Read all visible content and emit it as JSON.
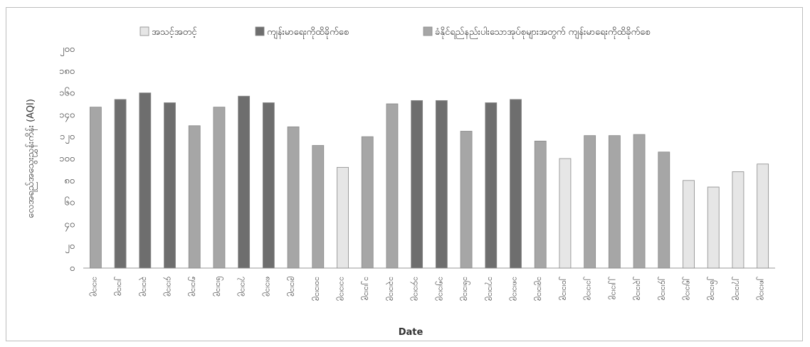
{
  "chart_data": {
    "type": "bar",
    "xlabel": "Date",
    "ylabel": "လေအရည်အသွေးညွှန်းကိန်း (AQI)",
    "ylim": [
      0,
      200
    ],
    "yticks": [
      "၀",
      "၂၀",
      "၄၀",
      "၆၀",
      "၈၀",
      "၁၀၀",
      "၁၂၀",
      "၁၄၀",
      "၁၆၀",
      "၁၈၀",
      "၂၀၀"
    ],
    "legend_position": "top",
    "legend": [
      {
        "key": "moderate",
        "label": "အသင့်အတင့်",
        "color": "#e6e6e6"
      },
      {
        "key": "unhealthy",
        "label": "ကျန်းမာရေးကိုထိခိုက်စေ",
        "color": "#6e6e6e"
      },
      {
        "key": "sensitive",
        "label": "ခံနိုင်ရည်နည်းပါးသောအုပ်စုများအတွက် ကျန်းမာရေးကိုထိခိုက်စေ",
        "color": "#a6a6a6"
      }
    ],
    "categories": [
      "၁၊၁၊၁၉",
      "၂၊၁၊၁၉",
      "၃၊၁၊၁၉",
      "၄၊၁၊၁၉",
      "၅၊၁၊၁၉",
      "၆၊၁၊၁၉",
      "၇၊၁၊၁၉",
      "၈၊၁၊၁၉",
      "၉၊၁၊၁၉",
      "၁၀၊၁၊၁၉",
      "၁၁၊၁၊၁၉",
      "၁၂၊၁၊၁၉",
      "၁၃၊၁၊၁၉",
      "၁၄၊၁၊၁၉",
      "၁၅၊၁၊၁၉",
      "၁၆၊၁၊၁၉",
      "၁၇၊၁၊၁၉",
      "၁၈၊၁၊၁၉",
      "၁၉၊၁၊၁၉",
      "၂၀၊၁၊၁၉",
      "၂၁၊၁၊၁၉",
      "၂၂၊၁၊၁၉",
      "၂၃၊၁၊၁၉",
      "၂၄၊၁၊၁၉",
      "၂၅၊၁၊၁၉",
      "၂၆၊၁၊၁၉",
      "၂၇၊၁၊၁၉",
      "၂၈၊၁၊၁၉"
    ],
    "values": [
      147,
      154,
      160,
      151,
      130,
      147,
      157,
      151,
      129,
      112,
      92,
      120,
      150,
      153,
      153,
      125,
      151,
      154,
      116,
      100,
      121,
      121,
      122,
      106,
      80,
      74,
      88,
      95
    ],
    "categories_class": [
      "sensitive",
      "unhealthy",
      "unhealthy",
      "unhealthy",
      "sensitive",
      "sensitive",
      "unhealthy",
      "unhealthy",
      "sensitive",
      "sensitive",
      "moderate",
      "sensitive",
      "sensitive",
      "unhealthy",
      "unhealthy",
      "sensitive",
      "unhealthy",
      "unhealthy",
      "sensitive",
      "moderate",
      "sensitive",
      "sensitive",
      "sensitive",
      "sensitive",
      "moderate",
      "moderate",
      "moderate",
      "moderate"
    ]
  }
}
